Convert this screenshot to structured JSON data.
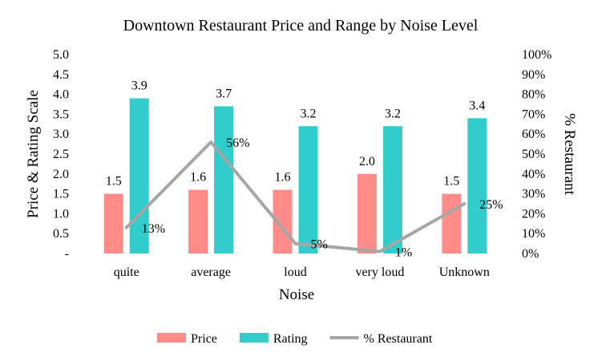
{
  "chart_data": {
    "type": "bar",
    "title": "Downtown Restaurant Price and Range by Noise Level",
    "xlabel": "Noise",
    "ylabel": "Price & Rating Scale",
    "y2label": "% Restaurant",
    "categories": [
      "quite",
      "average",
      "loud",
      "very loud",
      "Unknown"
    ],
    "ylim": [
      0,
      5
    ],
    "y_ticks": [
      "-",
      "0.5",
      "1.0",
      "1.5",
      "2.0",
      "2.5",
      "3.0",
      "3.5",
      "4.0",
      "4.5",
      "5.0"
    ],
    "y2lim": [
      0,
      100
    ],
    "y2_ticks": [
      "0%",
      "10%",
      "20%",
      "30%",
      "40%",
      "50%",
      "60%",
      "70%",
      "80%",
      "90%",
      "100%"
    ],
    "grid": false,
    "legend_position": "bottom",
    "series": [
      {
        "name": "Price",
        "type": "bar",
        "axis": "left",
        "color": "#FF8C88",
        "values": [
          1.5,
          1.6,
          1.6,
          2.0,
          1.5
        ],
        "labels": [
          "1.5",
          "1.6",
          "1.6",
          "2.0",
          "1.5"
        ]
      },
      {
        "name": "Rating",
        "type": "bar",
        "axis": "left",
        "color": "#33CCCC",
        "values": [
          3.9,
          3.7,
          3.2,
          3.2,
          3.4
        ],
        "labels": [
          "3.9",
          "3.7",
          "3.2",
          "3.2",
          "3.4"
        ]
      },
      {
        "name": "% Restaurant",
        "type": "line",
        "axis": "right",
        "color": "#A6A6A6",
        "values": [
          13,
          56,
          5,
          1,
          25
        ],
        "labels": [
          "13%",
          "56%",
          "5%",
          "1%",
          "25%"
        ]
      }
    ]
  }
}
